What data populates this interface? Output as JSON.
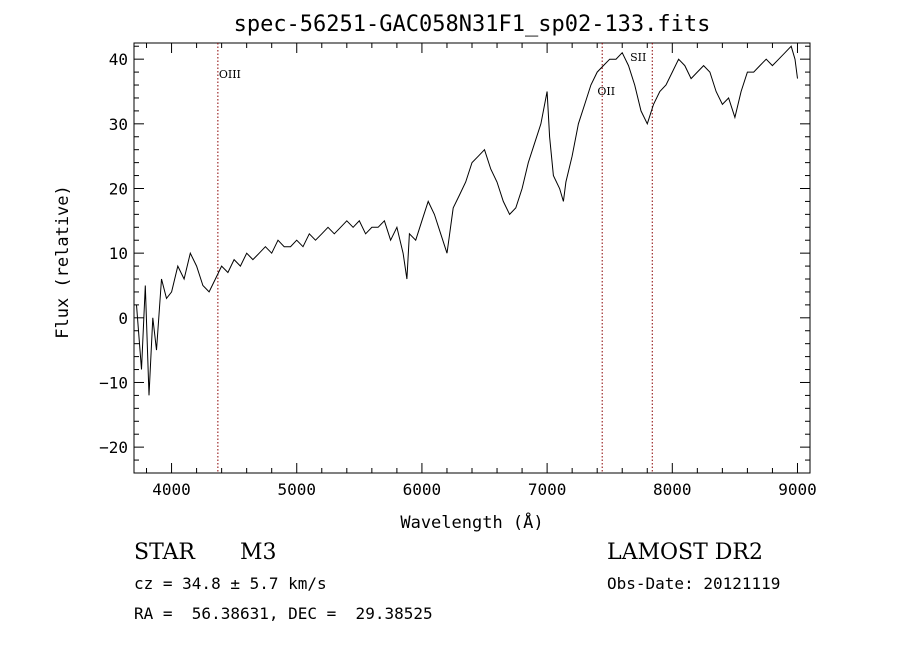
{
  "chart_data": {
    "type": "line",
    "title": "spec-56251-GAC058N31F1_sp02-133.fits",
    "xlabel": "Wavelength (Å)",
    "ylabel": "Flux (relative)",
    "xlim": [
      3700,
      9100
    ],
    "ylim": [
      -24,
      42.5
    ],
    "xticks": [
      4000,
      5000,
      6000,
      7000,
      8000,
      9000
    ],
    "yticks": [
      -20,
      -10,
      0,
      10,
      20,
      30,
      40
    ],
    "grid": false,
    "line_color": "#000000",
    "marker_color": "#8b0000",
    "series": [
      {
        "x": [
          3720,
          3760,
          3790,
          3820,
          3850,
          3880,
          3920,
          3960,
          4000,
          4050,
          4100,
          4150,
          4200,
          4250,
          4300,
          4350,
          4400,
          4450,
          4500,
          4550,
          4600,
          4650,
          4700,
          4750,
          4800,
          4850,
          4900,
          4950,
          5000,
          5050,
          5100,
          5150,
          5200,
          5250,
          5300,
          5350,
          5400,
          5450,
          5500,
          5550,
          5600,
          5650,
          5700,
          5750,
          5800,
          5850,
          5880,
          5900,
          5950,
          6000,
          6050,
          6100,
          6150,
          6200,
          6250,
          6300,
          6350,
          6400,
          6450,
          6500,
          6550,
          6600,
          6650,
          6700,
          6750,
          6800,
          6850,
          6900,
          6950,
          7000,
          7020,
          7050,
          7100,
          7130,
          7150,
          7200,
          7250,
          7300,
          7350,
          7400,
          7450,
          7500,
          7550,
          7600,
          7650,
          7700,
          7750,
          7800,
          7850,
          7900,
          7950,
          8000,
          8050,
          8100,
          8150,
          8200,
          8250,
          8300,
          8350,
          8400,
          8450,
          8500,
          8550,
          8600,
          8650,
          8700,
          8750,
          8800,
          8850,
          8900,
          8950,
          8980,
          9000
        ],
        "y": [
          2,
          -8,
          5,
          -12,
          0,
          -5,
          6,
          3,
          4,
          8,
          6,
          10,
          8,
          5,
          4,
          6,
          8,
          7,
          9,
          8,
          10,
          9,
          10,
          11,
          10,
          12,
          11,
          11,
          12,
          11,
          13,
          12,
          13,
          14,
          13,
          14,
          15,
          14,
          15,
          13,
          14,
          14,
          15,
          12,
          14,
          10,
          6,
          13,
          12,
          15,
          18,
          16,
          13,
          10,
          17,
          19,
          21,
          24,
          25,
          26,
          23,
          21,
          18,
          16,
          17,
          20,
          24,
          27,
          30,
          35,
          28,
          22,
          20,
          18,
          21,
          25,
          30,
          33,
          36,
          38,
          39,
          40,
          40,
          41,
          39,
          36,
          32,
          30,
          33,
          35,
          36,
          38,
          40,
          39,
          37,
          38,
          39,
          38,
          35,
          33,
          34,
          31,
          35,
          38,
          38,
          39,
          40,
          39,
          40,
          41,
          42,
          40,
          37
        ]
      }
    ],
    "line_markers": [
      {
        "label": "OIII",
        "x": 4370
      },
      {
        "label": "OII",
        "x": 7440
      },
      {
        "label": "SII",
        "x": 7840
      }
    ]
  },
  "info": {
    "object_type": "STAR",
    "subclass": "M3",
    "survey": "LAMOST DR2",
    "cz": "cz = 34.8 ± 5.7 km/s",
    "obs_date": "Obs-Date: 20121119",
    "coords": "RA =  56.38631, DEC =  29.38525"
  }
}
